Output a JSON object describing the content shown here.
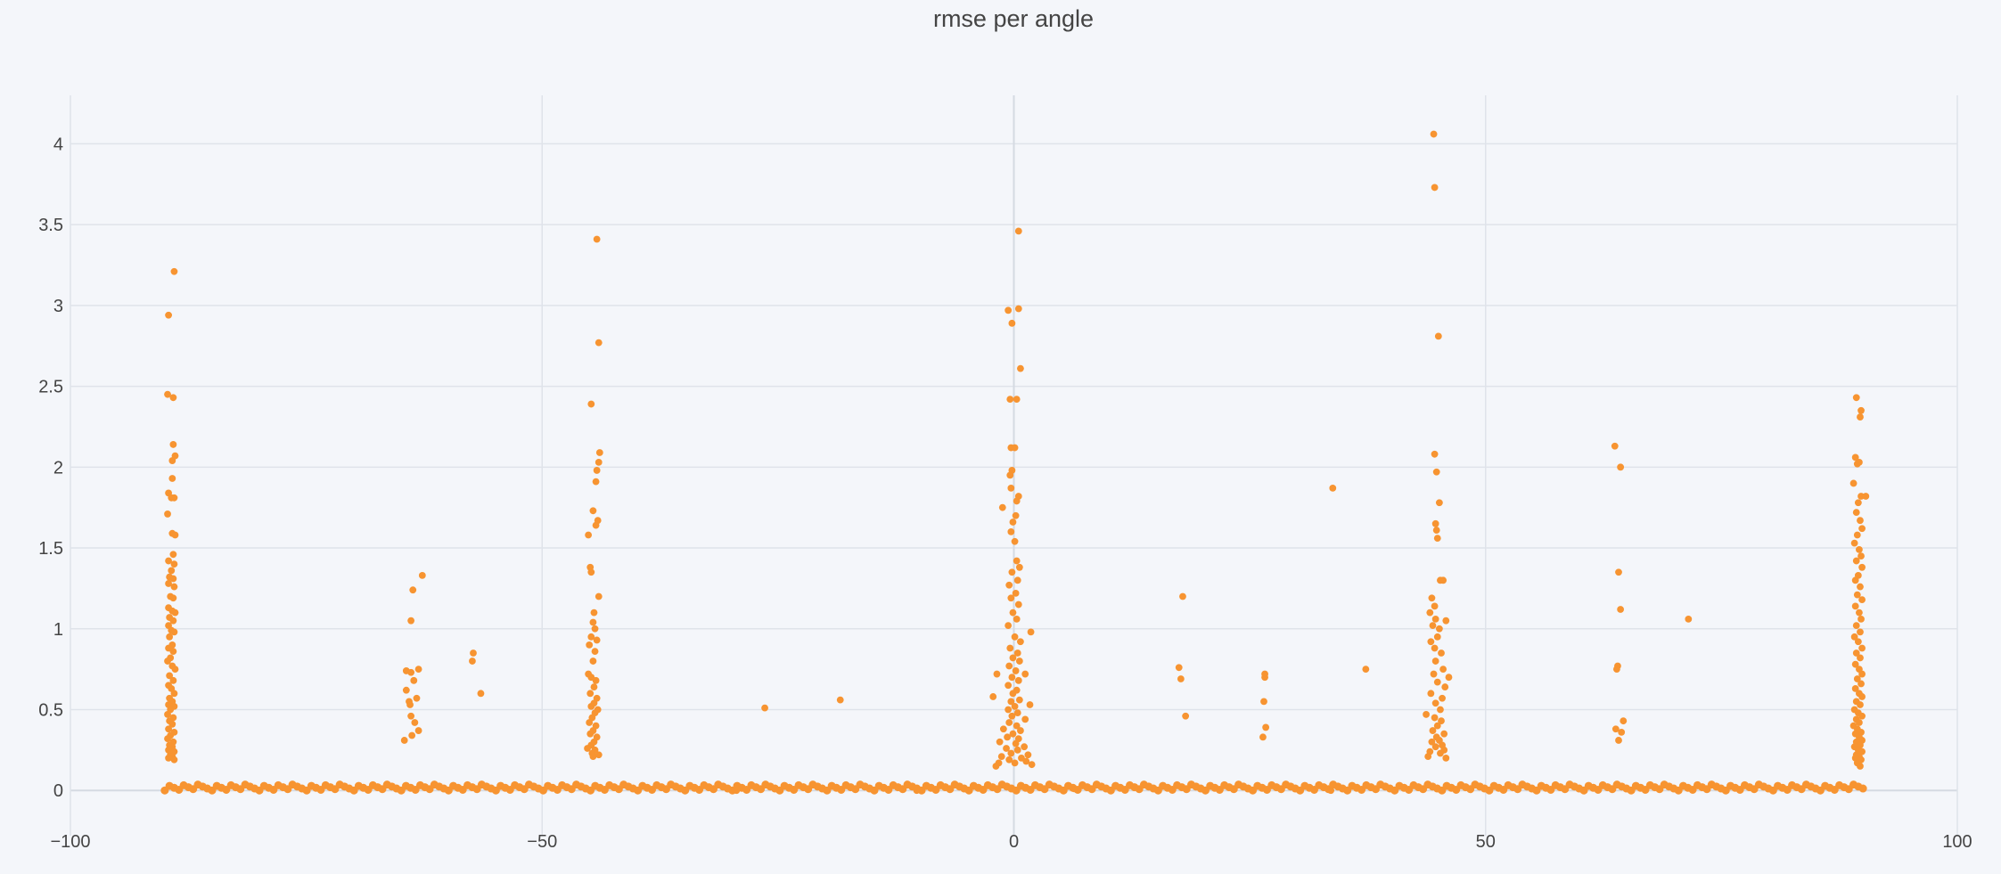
{
  "chart_data": {
    "type": "scatter",
    "title": "rmse per angle",
    "xlabel": "",
    "ylabel": "",
    "xlim": [
      -100,
      100
    ],
    "ylim": [
      -0.28,
      4.3
    ],
    "grid": true,
    "legend": "none",
    "marker_color": "#f79431",
    "x_ticks": [
      -100,
      -50,
      0,
      50,
      100
    ],
    "x_tick_labels": [
      "−100",
      "−50",
      "0",
      "50",
      "100"
    ],
    "y_ticks": [
      0,
      0.5,
      1,
      1.5,
      2,
      2.5,
      3,
      3.5,
      4
    ],
    "y_tick_labels": [
      "0",
      "0.5",
      "1",
      "1.5",
      "2",
      "2.5",
      "3",
      "3.5",
      "4"
    ],
    "baseline_band": {
      "x_range": [
        -90,
        90
      ],
      "y_range": [
        0.0,
        0.04
      ],
      "approx_count": 360
    },
    "points": [
      [
        -89,
        3.21
      ],
      [
        -89.6,
        2.94
      ],
      [
        -89.7,
        2.45
      ],
      [
        -89.1,
        2.43
      ],
      [
        -89.1,
        2.14
      ],
      [
        -88.9,
        2.07
      ],
      [
        -89.2,
        2.04
      ],
      [
        -89.2,
        1.93
      ],
      [
        -89.6,
        1.84
      ],
      [
        -89.3,
        1.81
      ],
      [
        -89,
        1.81
      ],
      [
        -89.7,
        1.71
      ],
      [
        -89.2,
        1.59
      ],
      [
        -88.9,
        1.58
      ],
      [
        -89.1,
        1.46
      ],
      [
        -89.6,
        1.42
      ],
      [
        -89,
        1.4
      ],
      [
        -89.3,
        1.36
      ],
      [
        -89.5,
        1.32
      ],
      [
        -89.1,
        1.31
      ],
      [
        -89.6,
        1.28
      ],
      [
        -89,
        1.26
      ],
      [
        -89.4,
        1.2
      ],
      [
        -89.1,
        1.19
      ],
      [
        -89.6,
        1.13
      ],
      [
        -89.2,
        1.11
      ],
      [
        -88.9,
        1.1
      ],
      [
        -89.5,
        1.07
      ],
      [
        -89.1,
        1.05
      ],
      [
        -89.6,
        1.02
      ],
      [
        -89.3,
        0.99
      ],
      [
        -89,
        0.98
      ],
      [
        -89.5,
        0.95
      ],
      [
        -89.2,
        0.9
      ],
      [
        -89.6,
        0.88
      ],
      [
        -89.1,
        0.86
      ],
      [
        -89.4,
        0.82
      ],
      [
        -89.7,
        0.8
      ],
      [
        -89.2,
        0.77
      ],
      [
        -88.9,
        0.75
      ],
      [
        -89.5,
        0.71
      ],
      [
        -89.1,
        0.68
      ],
      [
        -89.6,
        0.65
      ],
      [
        -89.3,
        0.63
      ],
      [
        -89,
        0.6
      ],
      [
        -89.5,
        0.57
      ],
      [
        -89.2,
        0.55
      ],
      [
        -89.6,
        0.53
      ],
      [
        -89,
        0.52
      ],
      [
        -89.4,
        0.5
      ],
      [
        -89.7,
        0.47
      ],
      [
        -89.1,
        0.45
      ],
      [
        -89.5,
        0.43
      ],
      [
        -89.2,
        0.41
      ],
      [
        -89.6,
        0.38
      ],
      [
        -89,
        0.36
      ],
      [
        -89.4,
        0.34
      ],
      [
        -89.7,
        0.32
      ],
      [
        -89.1,
        0.3
      ],
      [
        -89.5,
        0.28
      ],
      [
        -89.2,
        0.27
      ],
      [
        -89.6,
        0.25
      ],
      [
        -89,
        0.24
      ],
      [
        -89.4,
        0.22
      ],
      [
        -89.2,
        0.21
      ],
      [
        -89.6,
        0.2
      ],
      [
        -89,
        0.19
      ],
      [
        -62.7,
        1.33
      ],
      [
        -63.7,
        1.24
      ],
      [
        -63.9,
        1.05
      ],
      [
        -63.1,
        0.75
      ],
      [
        -64.4,
        0.74
      ],
      [
        -63.9,
        0.73
      ],
      [
        -63.6,
        0.68
      ],
      [
        -64.4,
        0.62
      ],
      [
        -63.3,
        0.57
      ],
      [
        -64.1,
        0.55
      ],
      [
        -64,
        0.53
      ],
      [
        -63.9,
        0.46
      ],
      [
        -63.5,
        0.42
      ],
      [
        -63.1,
        0.37
      ],
      [
        -63.8,
        0.34
      ],
      [
        -64.6,
        0.31
      ],
      [
        -57.3,
        0.85
      ],
      [
        -57.4,
        0.8
      ],
      [
        -56.5,
        0.6
      ],
      [
        -44.2,
        3.41
      ],
      [
        -44,
        2.77
      ],
      [
        -44.8,
        2.39
      ],
      [
        -43.9,
        2.09
      ],
      [
        -44,
        2.03
      ],
      [
        -44.2,
        1.98
      ],
      [
        -44.3,
        1.91
      ],
      [
        -45.1,
        1.58
      ],
      [
        -44.6,
        1.73
      ],
      [
        -44.1,
        1.67
      ],
      [
        -44.3,
        1.64
      ],
      [
        -44.9,
        1.38
      ],
      [
        -44.8,
        1.35
      ],
      [
        -44,
        1.2
      ],
      [
        -44.5,
        1.1
      ],
      [
        -44.6,
        1.04
      ],
      [
        -44.4,
        1.0
      ],
      [
        -44.8,
        0.95
      ],
      [
        -44.2,
        0.93
      ],
      [
        -45,
        0.9
      ],
      [
        -44.4,
        0.86
      ],
      [
        -44.6,
        0.8
      ],
      [
        -45.1,
        0.72
      ],
      [
        -44.8,
        0.7
      ],
      [
        -44.3,
        0.68
      ],
      [
        -44.5,
        0.64
      ],
      [
        -44.9,
        0.6
      ],
      [
        -44.2,
        0.57
      ],
      [
        -44.5,
        0.54
      ],
      [
        -44.8,
        0.52
      ],
      [
        -44.1,
        0.5
      ],
      [
        -44.4,
        0.48
      ],
      [
        -44.7,
        0.45
      ],
      [
        -45,
        0.42
      ],
      [
        -44.3,
        0.4
      ],
      [
        -44.6,
        0.37
      ],
      [
        -44.9,
        0.35
      ],
      [
        -44.2,
        0.33
      ],
      [
        -44.5,
        0.3
      ],
      [
        -44.8,
        0.28
      ],
      [
        -45.2,
        0.26
      ],
      [
        -44.4,
        0.25
      ],
      [
        -44.7,
        0.23
      ],
      [
        -44,
        0.22
      ],
      [
        -44.6,
        0.21
      ],
      [
        -26.4,
        0.51
      ],
      [
        -18.4,
        0.56
      ],
      [
        0.5,
        3.46
      ],
      [
        -0.6,
        2.97
      ],
      [
        0.5,
        2.98
      ],
      [
        -0.2,
        2.89
      ],
      [
        0.7,
        2.61
      ],
      [
        -0.4,
        2.42
      ],
      [
        0.3,
        2.42
      ],
      [
        -0.3,
        2.12
      ],
      [
        0.1,
        2.12
      ],
      [
        -0.2,
        1.98
      ],
      [
        -0.4,
        1.95
      ],
      [
        -0.3,
        1.87
      ],
      [
        0.5,
        1.82
      ],
      [
        0.3,
        1.79
      ],
      [
        -1.2,
        1.75
      ],
      [
        0.2,
        1.7
      ],
      [
        -0.1,
        1.66
      ],
      [
        -0.3,
        1.6
      ],
      [
        0.1,
        1.54
      ],
      [
        0.3,
        1.42
      ],
      [
        0.6,
        1.38
      ],
      [
        -0.2,
        1.35
      ],
      [
        0.4,
        1.3
      ],
      [
        -0.5,
        1.27
      ],
      [
        0.2,
        1.22
      ],
      [
        -0.3,
        1.19
      ],
      [
        0.5,
        1.15
      ],
      [
        -0.1,
        1.1
      ],
      [
        0.3,
        1.06
      ],
      [
        -0.6,
        1.02
      ],
      [
        1.8,
        0.98
      ],
      [
        0.1,
        0.95
      ],
      [
        0.7,
        0.92
      ],
      [
        -0.4,
        0.88
      ],
      [
        0.4,
        0.85
      ],
      [
        -0.1,
        0.82
      ],
      [
        0.6,
        0.8
      ],
      [
        -0.5,
        0.77
      ],
      [
        0.2,
        0.74
      ],
      [
        1.2,
        0.72
      ],
      [
        -1.8,
        0.72
      ],
      [
        -0.2,
        0.7
      ],
      [
        0.5,
        0.68
      ],
      [
        -0.6,
        0.65
      ],
      [
        0.3,
        0.62
      ],
      [
        -0.1,
        0.6
      ],
      [
        -2.2,
        0.58
      ],
      [
        0.6,
        0.56
      ],
      [
        -0.3,
        0.55
      ],
      [
        1.7,
        0.53
      ],
      [
        0.1,
        0.52
      ],
      [
        -0.6,
        0.5
      ],
      [
        0.4,
        0.48
      ],
      [
        -0.2,
        0.46
      ],
      [
        1.2,
        0.44
      ],
      [
        -0.5,
        0.42
      ],
      [
        0.3,
        0.4
      ],
      [
        -1.1,
        0.38
      ],
      [
        0.7,
        0.37
      ],
      [
        -0.1,
        0.35
      ],
      [
        -0.7,
        0.33
      ],
      [
        0.5,
        0.32
      ],
      [
        -1.5,
        0.3
      ],
      [
        0.2,
        0.29
      ],
      [
        1.1,
        0.27
      ],
      [
        -0.8,
        0.26
      ],
      [
        0.4,
        0.25
      ],
      [
        -0.3,
        0.23
      ],
      [
        1.5,
        0.22
      ],
      [
        -1.3,
        0.21
      ],
      [
        0.8,
        0.2
      ],
      [
        -0.5,
        0.19
      ],
      [
        1.3,
        0.18
      ],
      [
        -1.6,
        0.17
      ],
      [
        0.1,
        0.17
      ],
      [
        1.9,
        0.16
      ],
      [
        -1.9,
        0.15
      ],
      [
        17.9,
        1.2
      ],
      [
        17.5,
        0.76
      ],
      [
        17.7,
        0.69
      ],
      [
        18.2,
        0.46
      ],
      [
        26.6,
        0.72
      ],
      [
        26.6,
        0.7
      ],
      [
        26.5,
        0.55
      ],
      [
        26.7,
        0.39
      ],
      [
        26.4,
        0.33
      ],
      [
        33.8,
        1.87
      ],
      [
        37.3,
        0.75
      ],
      [
        44.5,
        4.06
      ],
      [
        44.6,
        3.73
      ],
      [
        45,
        2.81
      ],
      [
        44.6,
        2.08
      ],
      [
        44.8,
        1.97
      ],
      [
        45.1,
        1.78
      ],
      [
        44.7,
        1.65
      ],
      [
        44.8,
        1.61
      ],
      [
        44.9,
        1.56
      ],
      [
        45.5,
        1.3
      ],
      [
        45.2,
        1.3
      ],
      [
        44.3,
        1.19
      ],
      [
        44.6,
        1.14
      ],
      [
        44.1,
        1.1
      ],
      [
        44.7,
        1.06
      ],
      [
        45.8,
        1.05
      ],
      [
        44.4,
        1.02
      ],
      [
        45.1,
        1.0
      ],
      [
        44.9,
        0.95
      ],
      [
        44.2,
        0.92
      ],
      [
        44.6,
        0.88
      ],
      [
        45.3,
        0.85
      ],
      [
        44.7,
        0.8
      ],
      [
        45.5,
        0.75
      ],
      [
        44.5,
        0.72
      ],
      [
        46.1,
        0.7
      ],
      [
        44.9,
        0.67
      ],
      [
        45.7,
        0.64
      ],
      [
        44.2,
        0.6
      ],
      [
        45.4,
        0.57
      ],
      [
        44.7,
        0.54
      ],
      [
        45.2,
        0.5
      ],
      [
        43.7,
        0.47
      ],
      [
        44.6,
        0.45
      ],
      [
        45.3,
        0.43
      ],
      [
        44.9,
        0.4
      ],
      [
        44.4,
        0.37
      ],
      [
        45.6,
        0.35
      ],
      [
        44.8,
        0.33
      ],
      [
        45.1,
        0.31
      ],
      [
        44.3,
        0.3
      ],
      [
        45.4,
        0.28
      ],
      [
        44.7,
        0.27
      ],
      [
        45.6,
        0.25
      ],
      [
        44.1,
        0.24
      ],
      [
        45.2,
        0.23
      ],
      [
        43.9,
        0.21
      ],
      [
        45.8,
        0.2
      ],
      [
        63.7,
        2.13
      ],
      [
        64.3,
        2.0
      ],
      [
        64.1,
        1.35
      ],
      [
        64.3,
        1.12
      ],
      [
        64,
        0.77
      ],
      [
        63.9,
        0.75
      ],
      [
        64.6,
        0.43
      ],
      [
        63.8,
        0.38
      ],
      [
        64.4,
        0.36
      ],
      [
        64.1,
        0.31
      ],
      [
        71.5,
        1.06
      ],
      [
        89.3,
        2.43
      ],
      [
        89.8,
        2.35
      ],
      [
        89.7,
        2.31
      ],
      [
        89.2,
        2.06
      ],
      [
        89.6,
        2.03
      ],
      [
        89.4,
        2.02
      ],
      [
        89,
        1.9
      ],
      [
        89.8,
        1.82
      ],
      [
        90.3,
        1.82
      ],
      [
        89.5,
        1.78
      ],
      [
        89.3,
        1.72
      ],
      [
        89.7,
        1.67
      ],
      [
        89.9,
        1.62
      ],
      [
        89.4,
        1.58
      ],
      [
        89.1,
        1.53
      ],
      [
        89.6,
        1.49
      ],
      [
        89.8,
        1.45
      ],
      [
        89.3,
        1.42
      ],
      [
        89.9,
        1.38
      ],
      [
        89.5,
        1.33
      ],
      [
        89.2,
        1.3
      ],
      [
        89.7,
        1.26
      ],
      [
        89.4,
        1.21
      ],
      [
        89.9,
        1.18
      ],
      [
        89.2,
        1.14
      ],
      [
        89.6,
        1.1
      ],
      [
        89.8,
        1.06
      ],
      [
        89.3,
        1.02
      ],
      [
        89.7,
        0.98
      ],
      [
        89.1,
        0.95
      ],
      [
        89.5,
        0.92
      ],
      [
        89.9,
        0.88
      ],
      [
        89.3,
        0.85
      ],
      [
        89.7,
        0.82
      ],
      [
        89.2,
        0.78
      ],
      [
        89.6,
        0.75
      ],
      [
        89.9,
        0.72
      ],
      [
        89.4,
        0.69
      ],
      [
        89.8,
        0.66
      ],
      [
        89.2,
        0.63
      ],
      [
        89.6,
        0.6
      ],
      [
        89.9,
        0.58
      ],
      [
        89.3,
        0.55
      ],
      [
        89.7,
        0.53
      ],
      [
        89.1,
        0.5
      ],
      [
        89.5,
        0.48
      ],
      [
        89.9,
        0.46
      ],
      [
        89.3,
        0.44
      ],
      [
        89.6,
        0.42
      ],
      [
        89,
        0.4
      ],
      [
        89.4,
        0.38
      ],
      [
        89.8,
        0.36
      ],
      [
        89.2,
        0.35
      ],
      [
        89.6,
        0.33
      ],
      [
        89.9,
        0.31
      ],
      [
        89.3,
        0.3
      ],
      [
        89.7,
        0.28
      ],
      [
        89.1,
        0.27
      ],
      [
        89.5,
        0.25
      ],
      [
        89.9,
        0.24
      ],
      [
        89.3,
        0.22
      ],
      [
        89.6,
        0.21
      ],
      [
        89.2,
        0.2
      ],
      [
        89.8,
        0.19
      ],
      [
        89.4,
        0.17
      ],
      [
        89.7,
        0.15
      ],
      [
        -30.3,
        0.01
      ],
      [
        -29.4,
        0.0
      ],
      [
        -10.3,
        0.0
      ],
      [
        6.4,
        0.01
      ],
      [
        33.6,
        0.0
      ]
    ]
  }
}
